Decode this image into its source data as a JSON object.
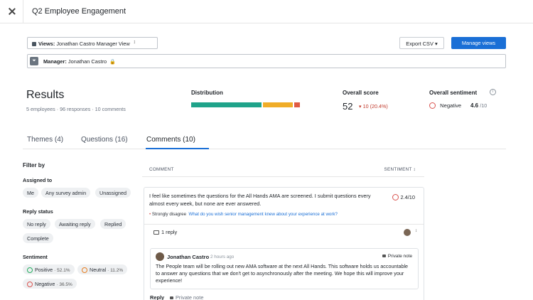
{
  "header": {
    "title": "Q2 Employee Engagement",
    "close_icon": "close-icon"
  },
  "view": {
    "label": "Views:",
    "value": "Jonathan Castro Manager View"
  },
  "toolbar": {
    "export": "Export CSV",
    "manage": "Manage views"
  },
  "filter_bar": {
    "label": "Manager:",
    "value": "Jonathan Castro"
  },
  "results": {
    "title": "Results",
    "meta": "5 employees · 96 responses · 10 comments",
    "distribution_label": "Distribution",
    "distribution": [
      {
        "fraction": 0.64,
        "color": "#1fa38a"
      },
      {
        "fraction": 0.27,
        "color": "#f0ad28"
      },
      {
        "fraction": 0.05,
        "color": "#e05a42"
      }
    ],
    "score_label": "Overall score",
    "score": "52",
    "score_delta": "10 (20.4%)",
    "sentiment_label": "Overall sentiment",
    "sentiment": "Negative",
    "sentiment_score": "4.6",
    "sentiment_max": "/10"
  },
  "tabs": [
    {
      "label": "Themes (4)"
    },
    {
      "label": "Questions (16)"
    },
    {
      "label": "Comments (10)"
    }
  ],
  "filters": {
    "title": "Filter by",
    "assigned_label": "Assigned to",
    "assigned": [
      "Me",
      "Any survey admin",
      "Unassigned"
    ],
    "reply_label": "Reply status",
    "reply": [
      "No reply",
      "Awaiting reply",
      "Replied",
      "Complete"
    ],
    "sentiment_label": "Sentiment",
    "sentiment": [
      {
        "name": "Positive",
        "pct": "52.1%",
        "color": "#27ae60"
      },
      {
        "name": "Neutral",
        "pct": "11.2%",
        "color": "#e67e22"
      },
      {
        "name": "Negative",
        "pct": "36.5%",
        "color": "#d9534f"
      }
    ]
  },
  "table": {
    "col_comment": "COMMENT",
    "col_sentiment": "SENTIMENT"
  },
  "comment": {
    "text": "I feel like sometimes the questions for the All Hands AMA are screened. I submit questions every almost every week, but none are ever answered.",
    "score": "2.4/10",
    "tag": "Strongly disagree",
    "question": "What do you wish senior management knew about your experience at work?",
    "replies": "1 reply"
  },
  "reply": {
    "author": "Jonathan Castro",
    "time": "2 hours ago",
    "private": "Private note",
    "text": "The People team will be rolling out new AMA software at the next All Hands. This software holds us accountable to answer any questions that we don't get to asynchronously after the meeting. We hope this will improve your experience!"
  },
  "actions": {
    "reply": "Reply",
    "private": "Private note"
  }
}
